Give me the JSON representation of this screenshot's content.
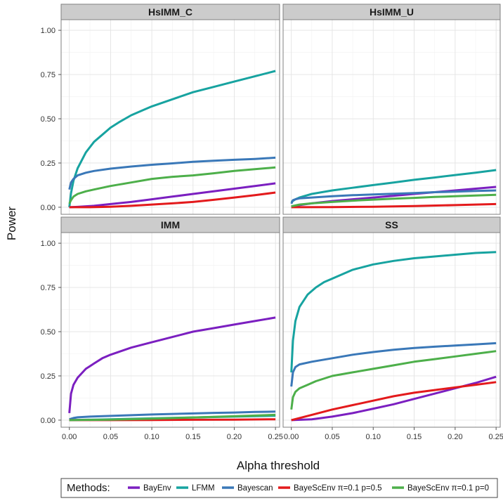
{
  "chart_data": {
    "type": "line",
    "xlabel": "Alpha threshold",
    "ylabel": "Power",
    "xlim": [
      -0.01,
      0.255
    ],
    "ylim": [
      -0.04,
      1.06
    ],
    "x_ticks": [
      0.0,
      0.05,
      0.1,
      0.15,
      0.2,
      0.25
    ],
    "x_tick_labels": [
      "0.00",
      "0.05",
      "0.10",
      "0.15",
      "0.20",
      "0.25"
    ],
    "y_ticks": [
      0.0,
      0.25,
      0.5,
      0.75,
      1.0
    ],
    "y_tick_labels": [
      "0.00",
      "0.25",
      "0.50",
      "0.75",
      "1.00"
    ],
    "grid": true,
    "legend": {
      "title": "Methods:",
      "position": "bottom",
      "entries": [
        {
          "name": "BayEnv",
          "color": "#7b1fc0"
        },
        {
          "name": "LFMM",
          "color": "#17a3a0"
        },
        {
          "name": "Bayescan",
          "color": "#3a78b8"
        },
        {
          "name": "BayeScEnv π=0.1 p=0.5",
          "color": "#e31a1c"
        },
        {
          "name": "BayeScEnv π=0.1 p=0",
          "color": "#4daf4a"
        }
      ]
    },
    "panels": [
      {
        "title": "HsIMM_C",
        "series": [
          {
            "name": "BayEnv",
            "x": [
              0.0,
              0.01,
              0.03,
              0.05,
              0.075,
              0.1,
              0.125,
              0.15,
              0.175,
              0.2,
              0.225,
              0.25
            ],
            "y": [
              0.0,
              0.002,
              0.008,
              0.018,
              0.03,
              0.045,
              0.06,
              0.075,
              0.09,
              0.105,
              0.12,
              0.135
            ]
          },
          {
            "name": "LFMM",
            "x": [
              0.0,
              0.002,
              0.005,
              0.01,
              0.02,
              0.03,
              0.04,
              0.05,
              0.06,
              0.075,
              0.09,
              0.1,
              0.125,
              0.15,
              0.175,
              0.2,
              0.225,
              0.25
            ],
            "y": [
              0.0,
              0.08,
              0.15,
              0.22,
              0.31,
              0.37,
              0.41,
              0.45,
              0.48,
              0.52,
              0.55,
              0.57,
              0.61,
              0.65,
              0.68,
              0.71,
              0.74,
              0.77
            ]
          },
          {
            "name": "Bayescan",
            "x": [
              0.0,
              0.002,
              0.005,
              0.01,
              0.02,
              0.03,
              0.05,
              0.075,
              0.1,
              0.125,
              0.15,
              0.175,
              0.2,
              0.225,
              0.25
            ],
            "y": [
              0.1,
              0.14,
              0.16,
              0.18,
              0.195,
              0.205,
              0.218,
              0.23,
              0.24,
              0.248,
              0.257,
              0.263,
              0.268,
              0.273,
              0.28
            ]
          },
          {
            "name": "BayeScEnv π=0.1 p=0.5",
            "x": [
              0.0,
              0.025,
              0.05,
              0.075,
              0.1,
              0.125,
              0.15,
              0.175,
              0.2,
              0.225,
              0.25
            ],
            "y": [
              0.0,
              0.0,
              0.003,
              0.008,
              0.015,
              0.022,
              0.03,
              0.042,
              0.055,
              0.068,
              0.083
            ]
          },
          {
            "name": "BayeScEnv π=0.1 p=0",
            "x": [
              0.0,
              0.002,
              0.005,
              0.01,
              0.02,
              0.03,
              0.05,
              0.075,
              0.1,
              0.125,
              0.15,
              0.175,
              0.2,
              0.225,
              0.25
            ],
            "y": [
              0.02,
              0.04,
              0.06,
              0.075,
              0.09,
              0.1,
              0.12,
              0.14,
              0.16,
              0.172,
              0.18,
              0.192,
              0.205,
              0.215,
              0.225
            ]
          }
        ]
      },
      {
        "title": "HsIMM_U",
        "series": [
          {
            "name": "BayEnv",
            "x": [
              0.0,
              0.01,
              0.025,
              0.05,
              0.075,
              0.1,
              0.125,
              0.15,
              0.175,
              0.2,
              0.225,
              0.25
            ],
            "y": [
              0.0,
              0.012,
              0.022,
              0.035,
              0.045,
              0.055,
              0.065,
              0.075,
              0.085,
              0.095,
              0.105,
              0.115
            ]
          },
          {
            "name": "LFMM",
            "x": [
              0.0,
              0.005,
              0.01,
              0.025,
              0.05,
              0.075,
              0.1,
              0.125,
              0.15,
              0.175,
              0.2,
              0.225,
              0.25
            ],
            "y": [
              0.03,
              0.045,
              0.055,
              0.075,
              0.095,
              0.11,
              0.125,
              0.14,
              0.155,
              0.168,
              0.182,
              0.195,
              0.21
            ]
          },
          {
            "name": "Bayescan",
            "x": [
              0.0,
              0.002,
              0.005,
              0.01,
              0.025,
              0.05,
              0.075,
              0.1,
              0.125,
              0.15,
              0.175,
              0.2,
              0.225,
              0.25
            ],
            "y": [
              0.02,
              0.04,
              0.045,
              0.05,
              0.055,
              0.062,
              0.068,
              0.072,
              0.076,
              0.08,
              0.085,
              0.088,
              0.092,
              0.095
            ]
          },
          {
            "name": "BayeScEnv π=0.1 p=0.5",
            "x": [
              0.0,
              0.05,
              0.1,
              0.15,
              0.2,
              0.25
            ],
            "y": [
              0.0,
              0.001,
              0.003,
              0.007,
              0.012,
              0.018
            ]
          },
          {
            "name": "BayeScEnv π=0.1 p=0",
            "x": [
              0.0,
              0.005,
              0.01,
              0.025,
              0.05,
              0.075,
              0.1,
              0.125,
              0.15,
              0.175,
              0.2,
              0.225,
              0.25
            ],
            "y": [
              0.005,
              0.01,
              0.015,
              0.022,
              0.03,
              0.037,
              0.043,
              0.048,
              0.053,
              0.058,
              0.062,
              0.066,
              0.07
            ]
          }
        ]
      },
      {
        "title": "IMM",
        "series": [
          {
            "name": "BayEnv",
            "x": [
              0.0,
              0.002,
              0.005,
              0.01,
              0.02,
              0.03,
              0.04,
              0.05,
              0.075,
              0.1,
              0.125,
              0.15,
              0.175,
              0.2,
              0.225,
              0.25
            ],
            "y": [
              0.04,
              0.15,
              0.2,
              0.24,
              0.29,
              0.32,
              0.35,
              0.37,
              0.41,
              0.44,
              0.47,
              0.5,
              0.52,
              0.54,
              0.56,
              0.58
            ]
          },
          {
            "name": "LFMM",
            "x": [
              0.0,
              0.05,
              0.1,
              0.15,
              0.2,
              0.25
            ],
            "y": [
              0.0,
              0.005,
              0.01,
              0.015,
              0.02,
              0.025
            ]
          },
          {
            "name": "Bayescan",
            "x": [
              0.0,
              0.005,
              0.01,
              0.025,
              0.05,
              0.075,
              0.1,
              0.125,
              0.15,
              0.175,
              0.2,
              0.225,
              0.25
            ],
            "y": [
              0.005,
              0.012,
              0.016,
              0.02,
              0.024,
              0.028,
              0.032,
              0.035,
              0.038,
              0.041,
              0.043,
              0.046,
              0.048
            ]
          },
          {
            "name": "BayeScEnv π=0.1 p=0.5",
            "x": [
              0.0,
              0.05,
              0.1,
              0.15,
              0.2,
              0.25
            ],
            "y": [
              0.0,
              0.0,
              0.001,
              0.002,
              0.003,
              0.005
            ]
          },
          {
            "name": "BayeScEnv π=0.1 p=0",
            "x": [
              0.0,
              0.05,
              0.1,
              0.15,
              0.2,
              0.25
            ],
            "y": [
              0.0,
              0.003,
              0.008,
              0.015,
              0.022,
              0.03
            ]
          }
        ]
      },
      {
        "title": "SS",
        "series": [
          {
            "name": "BayEnv",
            "x": [
              0.0,
              0.025,
              0.05,
              0.075,
              0.1,
              0.125,
              0.15,
              0.175,
              0.2,
              0.225,
              0.25
            ],
            "y": [
              0.0,
              0.005,
              0.02,
              0.04,
              0.065,
              0.09,
              0.12,
              0.15,
              0.18,
              0.21,
              0.245
            ]
          },
          {
            "name": "LFMM",
            "x": [
              0.0,
              0.002,
              0.005,
              0.01,
              0.02,
              0.03,
              0.04,
              0.05,
              0.075,
              0.1,
              0.125,
              0.15,
              0.175,
              0.2,
              0.225,
              0.25
            ],
            "y": [
              0.27,
              0.45,
              0.56,
              0.64,
              0.71,
              0.75,
              0.78,
              0.8,
              0.85,
              0.88,
              0.9,
              0.915,
              0.925,
              0.935,
              0.945,
              0.95
            ]
          },
          {
            "name": "Bayescan",
            "x": [
              0.0,
              0.002,
              0.005,
              0.01,
              0.025,
              0.05,
              0.075,
              0.1,
              0.125,
              0.15,
              0.175,
              0.2,
              0.225,
              0.25
            ],
            "y": [
              0.19,
              0.27,
              0.3,
              0.315,
              0.33,
              0.35,
              0.37,
              0.385,
              0.398,
              0.408,
              0.415,
              0.422,
              0.428,
              0.435
            ]
          },
          {
            "name": "BayeScEnv π=0.1 p=0.5",
            "x": [
              0.0,
              0.025,
              0.05,
              0.075,
              0.1,
              0.125,
              0.15,
              0.175,
              0.2,
              0.225,
              0.25
            ],
            "y": [
              0.0,
              0.03,
              0.06,
              0.085,
              0.11,
              0.135,
              0.155,
              0.17,
              0.185,
              0.2,
              0.215
            ]
          },
          {
            "name": "BayeScEnv π=0.1 p=0",
            "x": [
              0.0,
              0.002,
              0.005,
              0.01,
              0.02,
              0.03,
              0.05,
              0.075,
              0.1,
              0.125,
              0.15,
              0.175,
              0.2,
              0.225,
              0.25
            ],
            "y": [
              0.06,
              0.13,
              0.16,
              0.18,
              0.2,
              0.22,
              0.25,
              0.27,
              0.29,
              0.31,
              0.33,
              0.345,
              0.36,
              0.375,
              0.39
            ]
          }
        ]
      }
    ]
  }
}
